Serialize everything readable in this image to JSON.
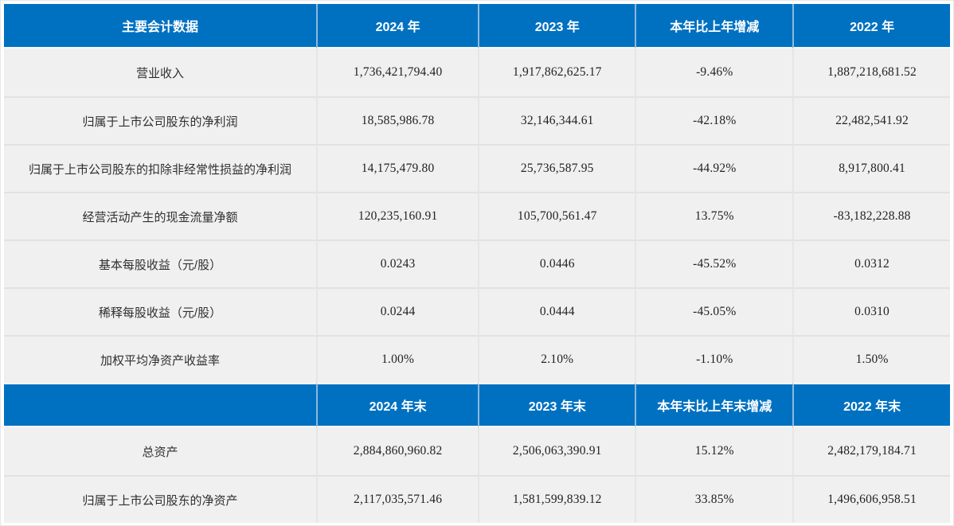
{
  "colors": {
    "header_bg": "#0071C1",
    "header_text": "#FFFFFF",
    "header_divider": "#8CB9DE",
    "row_bg": "#F0F0F1",
    "row_divider": "#E2E2E2",
    "body_text": "#333333"
  },
  "table": {
    "section1": {
      "header": [
        "主要会计数据",
        "2024 年",
        "2023 年",
        "本年比上年增减",
        "2022 年"
      ],
      "rows": [
        {
          "label": "营业收入",
          "y2024": "1,736,421,794.40",
          "y2023": "1,917,862,625.17",
          "change": "-9.46%",
          "y2022": "1,887,218,681.52"
        },
        {
          "label": "归属于上市公司股东的净利润",
          "y2024": "18,585,986.78",
          "y2023": "32,146,344.61",
          "change": "-42.18%",
          "y2022": "22,482,541.92"
        },
        {
          "label": "归属于上市公司股东的扣除非经常性损益的净利润",
          "y2024": "14,175,479.80",
          "y2023": "25,736,587.95",
          "change": "-44.92%",
          "y2022": "8,917,800.41"
        },
        {
          "label": "经营活动产生的现金流量净额",
          "y2024": "120,235,160.91",
          "y2023": "105,700,561.47",
          "change": "13.75%",
          "y2022": "-83,182,228.88"
        },
        {
          "label": "基本每股收益（元/股）",
          "y2024": "0.0243",
          "y2023": "0.0446",
          "change": "-45.52%",
          "y2022": "0.0312"
        },
        {
          "label": "稀释每股收益（元/股）",
          "y2024": "0.0244",
          "y2023": "0.0444",
          "change": "-45.05%",
          "y2022": "0.0310"
        },
        {
          "label": "加权平均净资产收益率",
          "y2024": "1.00%",
          "y2023": "2.10%",
          "change": "-1.10%",
          "y2022": "1.50%"
        }
      ]
    },
    "section2": {
      "header": [
        "",
        "2024 年末",
        "2023 年末",
        "本年末比上年末增减",
        "2022 年末"
      ],
      "rows": [
        {
          "label": "总资产",
          "end2024": "2,884,860,960.82",
          "end2023": "2,506,063,390.91",
          "change": "15.12%",
          "end2022": "2,482,179,184.71"
        },
        {
          "label": "归属于上市公司股东的净资产",
          "end2024": "2,117,035,571.46",
          "end2023": "1,581,599,839.12",
          "change": "33.85%",
          "end2022": "1,496,606,958.51"
        }
      ]
    }
  }
}
